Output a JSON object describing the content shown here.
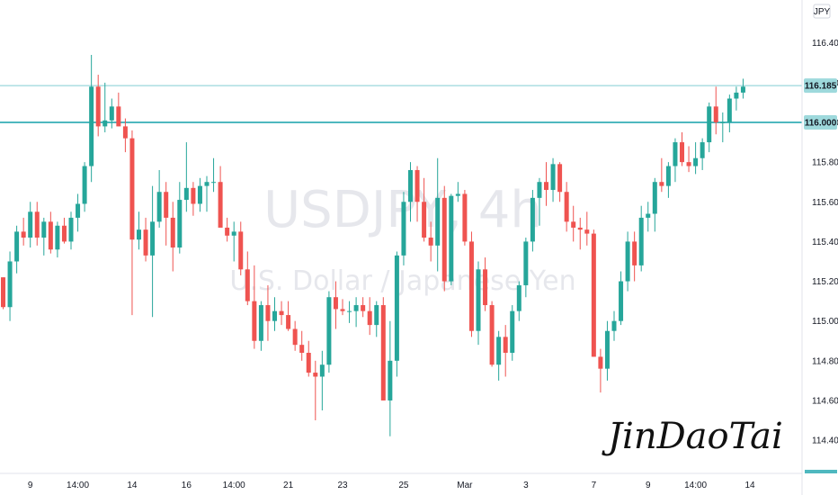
{
  "chart_data": {
    "type": "candlestick",
    "title": "USDJPY, 4h",
    "subtitle": "U.S. Dollar / Japanese Yen",
    "currency": "JPY",
    "ylim": [
      114.26,
      116.58
    ],
    "y_ticks": [
      "116.400",
      "116.200",
      "116.000",
      "115.800",
      "115.600",
      "115.400",
      "115.200",
      "115.000",
      "114.800",
      "114.600",
      "114.400"
    ],
    "x_ticks": [
      {
        "label": "9",
        "index": 4
      },
      {
        "label": "14:00",
        "index": 11
      },
      {
        "label": "14",
        "index": 19
      },
      {
        "label": "16",
        "index": 27
      },
      {
        "label": "14:00",
        "index": 34
      },
      {
        "label": "21",
        "index": 42
      },
      {
        "label": "23",
        "index": 50
      },
      {
        "label": "25",
        "index": 59
      },
      {
        "label": "Mar",
        "index": 68
      },
      {
        "label": "3",
        "index": 77
      },
      {
        "label": "7",
        "index": 87
      },
      {
        "label": "9",
        "index": 95
      },
      {
        "label": "14:00",
        "index": 102
      },
      {
        "label": "14",
        "index": 110
      }
    ],
    "last_price_label": "116.185",
    "level_label": "116.000",
    "level_value": 116.0,
    "last_value": 116.185,
    "candles": [
      [
        115.22,
        115.22,
        115.06,
        115.07
      ],
      [
        115.07,
        115.35,
        115.0,
        115.3
      ],
      [
        115.3,
        115.48,
        115.24,
        115.45
      ],
      [
        115.45,
        115.52,
        115.38,
        115.42
      ],
      [
        115.42,
        115.6,
        115.37,
        115.55
      ],
      [
        115.55,
        115.6,
        115.38,
        115.42
      ],
      [
        115.42,
        115.52,
        115.33,
        115.5
      ],
      [
        115.5,
        115.55,
        115.34,
        115.36
      ],
      [
        115.36,
        115.5,
        115.32,
        115.48
      ],
      [
        115.48,
        115.52,
        115.39,
        115.4
      ],
      [
        115.4,
        115.55,
        115.36,
        115.52
      ],
      [
        115.52,
        115.64,
        115.45,
        115.59
      ],
      [
        115.59,
        115.8,
        115.55,
        115.78
      ],
      [
        115.78,
        116.34,
        115.7,
        116.18
      ],
      [
        116.18,
        116.24,
        115.93,
        115.98
      ],
      [
        115.98,
        116.2,
        115.95,
        116.01
      ],
      [
        116.01,
        116.12,
        115.97,
        116.08
      ],
      [
        116.08,
        116.15,
        115.98,
        115.98
      ],
      [
        115.98,
        116.02,
        115.85,
        115.92
      ],
      [
        115.92,
        115.96,
        115.03,
        115.41
      ],
      [
        115.41,
        115.55,
        115.36,
        115.46
      ],
      [
        115.46,
        115.52,
        115.3,
        115.33
      ],
      [
        115.33,
        115.68,
        115.02,
        115.5
      ],
      [
        115.5,
        115.76,
        115.47,
        115.65
      ],
      [
        115.65,
        115.7,
        115.38,
        115.52
      ],
      [
        115.52,
        115.6,
        115.25,
        115.37
      ],
      [
        115.37,
        115.7,
        115.34,
        115.61
      ],
      [
        115.61,
        115.9,
        115.55,
        115.67
      ],
      [
        115.67,
        115.7,
        115.53,
        115.59
      ],
      [
        115.59,
        115.72,
        115.55,
        115.68
      ],
      [
        115.68,
        115.73,
        115.55,
        115.7
      ],
      [
        115.7,
        115.82,
        115.65,
        115.7
      ],
      [
        115.7,
        115.78,
        115.48,
        115.47
      ],
      [
        115.47,
        115.52,
        115.4,
        115.43
      ],
      [
        115.43,
        115.5,
        115.3,
        115.45
      ],
      [
        115.45,
        115.5,
        115.23,
        115.26
      ],
      [
        115.26,
        115.35,
        115.08,
        115.1
      ],
      [
        115.1,
        115.28,
        114.86,
        114.9
      ],
      [
        114.9,
        115.1,
        114.85,
        115.08
      ],
      [
        115.08,
        115.18,
        114.9,
        115.0
      ],
      [
        115.0,
        115.12,
        114.95,
        115.05
      ],
      [
        115.05,
        115.1,
        114.98,
        115.03
      ],
      [
        115.03,
        115.1,
        114.95,
        114.96
      ],
      [
        114.96,
        115.0,
        114.85,
        114.88
      ],
      [
        114.88,
        114.95,
        114.8,
        114.84
      ],
      [
        114.84,
        114.9,
        114.72,
        114.74
      ],
      [
        114.74,
        114.8,
        114.5,
        114.72
      ],
      [
        114.72,
        114.85,
        114.55,
        114.78
      ],
      [
        114.78,
        115.15,
        114.74,
        115.12
      ],
      [
        115.12,
        115.2,
        114.96,
        115.06
      ],
      [
        115.06,
        115.11,
        115.03,
        115.05
      ],
      [
        115.05,
        115.1,
        114.99,
        115.05
      ],
      [
        115.05,
        115.12,
        114.97,
        115.08
      ],
      [
        115.08,
        115.12,
        115.02,
        115.05
      ],
      [
        115.05,
        115.12,
        114.93,
        114.98
      ],
      [
        114.98,
        115.1,
        114.92,
        115.08
      ],
      [
        115.08,
        115.12,
        114.6,
        114.6
      ],
      [
        114.6,
        115.0,
        114.42,
        114.8
      ],
      [
        114.8,
        115.35,
        114.72,
        115.33
      ],
      [
        115.33,
        115.65,
        115.28,
        115.6
      ],
      [
        115.6,
        115.8,
        115.5,
        115.76
      ],
      [
        115.76,
        115.78,
        115.5,
        115.6
      ],
      [
        115.6,
        115.72,
        115.4,
        115.42
      ],
      [
        115.42,
        115.5,
        115.3,
        115.38
      ],
      [
        115.38,
        115.82,
        115.25,
        115.62
      ],
      [
        115.62,
        115.68,
        115.15,
        115.2
      ],
      [
        115.2,
        115.64,
        115.18,
        115.63
      ],
      [
        115.63,
        115.7,
        115.6,
        115.64
      ],
      [
        115.64,
        115.66,
        115.38,
        115.4
      ],
      [
        115.4,
        115.45,
        114.92,
        114.95
      ],
      [
        114.95,
        115.3,
        114.88,
        115.26
      ],
      [
        115.26,
        115.32,
        115.05,
        115.08
      ],
      [
        115.08,
        115.1,
        114.77,
        114.78
      ],
      [
        114.78,
        114.95,
        114.7,
        114.92
      ],
      [
        114.92,
        114.98,
        114.72,
        114.84
      ],
      [
        114.84,
        115.08,
        114.8,
        115.05
      ],
      [
        115.05,
        115.2,
        115.0,
        115.18
      ],
      [
        115.18,
        115.42,
        115.12,
        115.4
      ],
      [
        115.4,
        115.66,
        115.35,
        115.62
      ],
      [
        115.62,
        115.72,
        115.48,
        115.7
      ],
      [
        115.7,
        115.8,
        115.58,
        115.66
      ],
      [
        115.66,
        115.82,
        115.6,
        115.79
      ],
      [
        115.79,
        115.8,
        115.6,
        115.65
      ],
      [
        115.65,
        115.7,
        115.45,
        115.5
      ],
      [
        115.5,
        115.58,
        115.4,
        115.47
      ],
      [
        115.47,
        115.52,
        115.36,
        115.46
      ],
      [
        115.46,
        115.55,
        115.38,
        115.44
      ],
      [
        115.44,
        115.46,
        114.82,
        114.82
      ],
      [
        114.82,
        114.86,
        114.64,
        114.76
      ],
      [
        114.76,
        115.0,
        114.7,
        114.95
      ],
      [
        114.95,
        115.05,
        114.9,
        115.0
      ],
      [
        115.0,
        115.25,
        114.98,
        115.2
      ],
      [
        115.2,
        115.45,
        115.15,
        115.4
      ],
      [
        115.4,
        115.45,
        115.2,
        115.28
      ],
      [
        115.28,
        115.58,
        115.25,
        115.52
      ],
      [
        115.52,
        115.6,
        115.45,
        115.54
      ],
      [
        115.54,
        115.72,
        115.45,
        115.7
      ],
      [
        115.7,
        115.82,
        115.65,
        115.68
      ],
      [
        115.68,
        115.8,
        115.62,
        115.78
      ],
      [
        115.78,
        115.92,
        115.7,
        115.9
      ],
      [
        115.9,
        115.95,
        115.78,
        115.8
      ],
      [
        115.8,
        115.88,
        115.75,
        115.78
      ],
      [
        115.78,
        115.9,
        115.74,
        115.82
      ],
      [
        115.82,
        115.92,
        115.76,
        115.9
      ],
      [
        115.9,
        116.1,
        115.85,
        116.08
      ],
      [
        116.08,
        116.18,
        115.94,
        116.0
      ],
      [
        116.0,
        116.05,
        115.9,
        116.0
      ],
      [
        116.0,
        116.14,
        115.95,
        116.12
      ],
      [
        116.12,
        116.18,
        116.06,
        116.15
      ],
      [
        116.15,
        116.22,
        116.12,
        116.18
      ]
    ],
    "grid": false,
    "legend": "none"
  },
  "colors": {
    "up": "#26a69a",
    "down": "#ef5350",
    "line": "#4fb8bf",
    "tag_bg": "#9ed9dc",
    "axis_text": "#131722",
    "watermark": "#d1d4dc"
  }
}
